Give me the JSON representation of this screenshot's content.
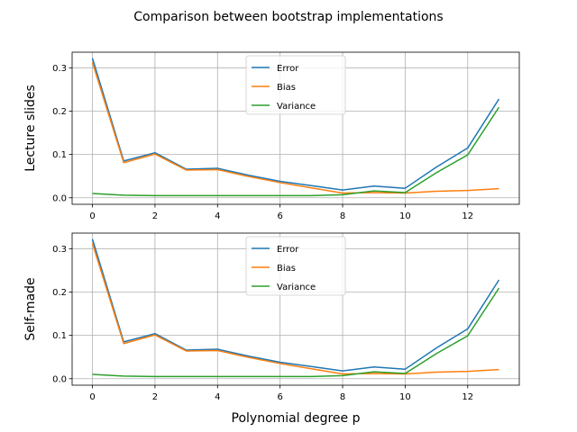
{
  "figure": {
    "title": "Comparison between bootstrap implementations"
  },
  "chart_data": [
    {
      "type": "line",
      "title": "",
      "xlabel": "",
      "ylabel": "Lecture slides",
      "xlim": [
        -0.65,
        13.65
      ],
      "ylim": [
        -0.015,
        0.336
      ],
      "xticks": [
        0,
        2,
        4,
        6,
        8,
        10,
        12
      ],
      "yticks": [
        0.0,
        0.1,
        0.2,
        0.3
      ],
      "ytick_labels": [
        "0.0",
        "0.1",
        "0.2",
        "0.3"
      ],
      "grid": true,
      "legend_position": "upper center",
      "x": [
        0,
        1,
        2,
        3,
        4,
        5,
        6,
        7,
        8,
        9,
        10,
        11,
        12,
        13
      ],
      "series": [
        {
          "name": "Error",
          "color": "#1f77b4",
          "values": [
            0.322,
            0.085,
            0.104,
            0.066,
            0.068,
            0.052,
            0.038,
            0.028,
            0.018,
            0.027,
            0.022,
            0.071,
            0.115,
            0.228
          ]
        },
        {
          "name": "Bias",
          "color": "#ff7f0e",
          "values": [
            0.312,
            0.081,
            0.101,
            0.064,
            0.065,
            0.049,
            0.035,
            0.023,
            0.011,
            0.012,
            0.011,
            0.015,
            0.017,
            0.021
          ]
        },
        {
          "name": "Variance",
          "color": "#2ca02c",
          "values": [
            0.01,
            0.006,
            0.005,
            0.005,
            0.005,
            0.005,
            0.005,
            0.005,
            0.007,
            0.016,
            0.012,
            0.058,
            0.099,
            0.209
          ]
        }
      ]
    },
    {
      "type": "line",
      "title": "",
      "xlabel": "Polynomial degree p",
      "ylabel": "Self-made",
      "xlim": [
        -0.65,
        13.65
      ],
      "ylim": [
        -0.015,
        0.336
      ],
      "xticks": [
        0,
        2,
        4,
        6,
        8,
        10,
        12
      ],
      "yticks": [
        0.0,
        0.1,
        0.2,
        0.3
      ],
      "ytick_labels": [
        "0.0",
        "0.1",
        "0.2",
        "0.3"
      ],
      "grid": true,
      "legend_position": "upper center",
      "x": [
        0,
        1,
        2,
        3,
        4,
        5,
        6,
        7,
        8,
        9,
        10,
        11,
        12,
        13
      ],
      "series": [
        {
          "name": "Error",
          "color": "#1f77b4",
          "values": [
            0.322,
            0.085,
            0.104,
            0.066,
            0.068,
            0.052,
            0.038,
            0.028,
            0.018,
            0.027,
            0.022,
            0.071,
            0.115,
            0.228
          ]
        },
        {
          "name": "Bias",
          "color": "#ff7f0e",
          "values": [
            0.312,
            0.081,
            0.101,
            0.064,
            0.065,
            0.049,
            0.035,
            0.023,
            0.011,
            0.012,
            0.011,
            0.015,
            0.017,
            0.021
          ]
        },
        {
          "name": "Variance",
          "color": "#2ca02c",
          "values": [
            0.01,
            0.006,
            0.005,
            0.005,
            0.005,
            0.005,
            0.005,
            0.005,
            0.007,
            0.016,
            0.012,
            0.058,
            0.099,
            0.209
          ]
        }
      ]
    }
  ]
}
